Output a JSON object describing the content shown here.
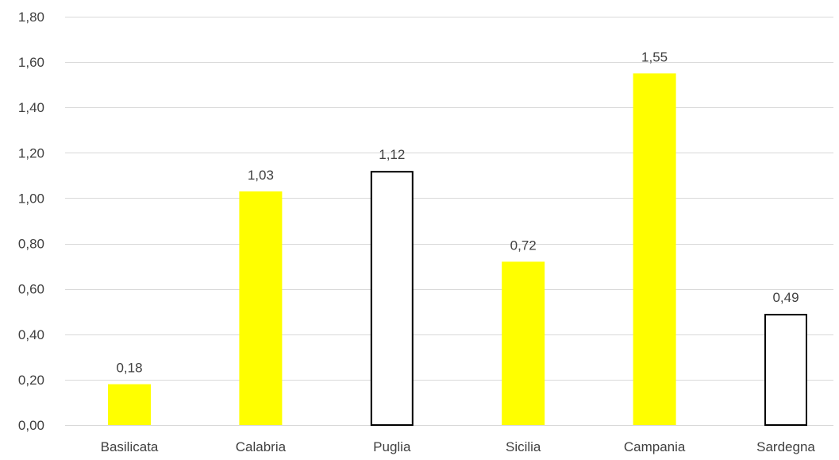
{
  "chart_data": {
    "type": "bar",
    "categories": [
      "Basilicata",
      "Calabria",
      "Puglia",
      "Sicilia",
      "Campania",
      "Sardegna"
    ],
    "values": [
      0.18,
      1.03,
      1.12,
      0.72,
      1.55,
      0.49
    ],
    "value_labels": [
      "0,18",
      "1,03",
      "1,12",
      "0,72",
      "1,55",
      "0,49"
    ],
    "bar_styles": [
      "filled",
      "filled",
      "outline",
      "filled",
      "filled",
      "outline"
    ],
    "ylim": [
      0,
      1.8
    ],
    "yticks": [
      0,
      0.2,
      0.4,
      0.6,
      0.8,
      1.0,
      1.2,
      1.4,
      1.6,
      1.8
    ],
    "ytick_labels": [
      "0,00",
      "0,20",
      "0,40",
      "0,60",
      "0,80",
      "1,00",
      "1,20",
      "1,40",
      "1,60",
      "1,80"
    ],
    "title": "",
    "xlabel": "",
    "ylabel": "",
    "grid": true,
    "legend": "none",
    "colors": {
      "filled_bar": "#FFFF00",
      "outline_bar_fill": "#FFFFFF",
      "outline_bar_stroke": "#000000",
      "gridline": "#D9D9D9",
      "text": "#404040"
    }
  }
}
